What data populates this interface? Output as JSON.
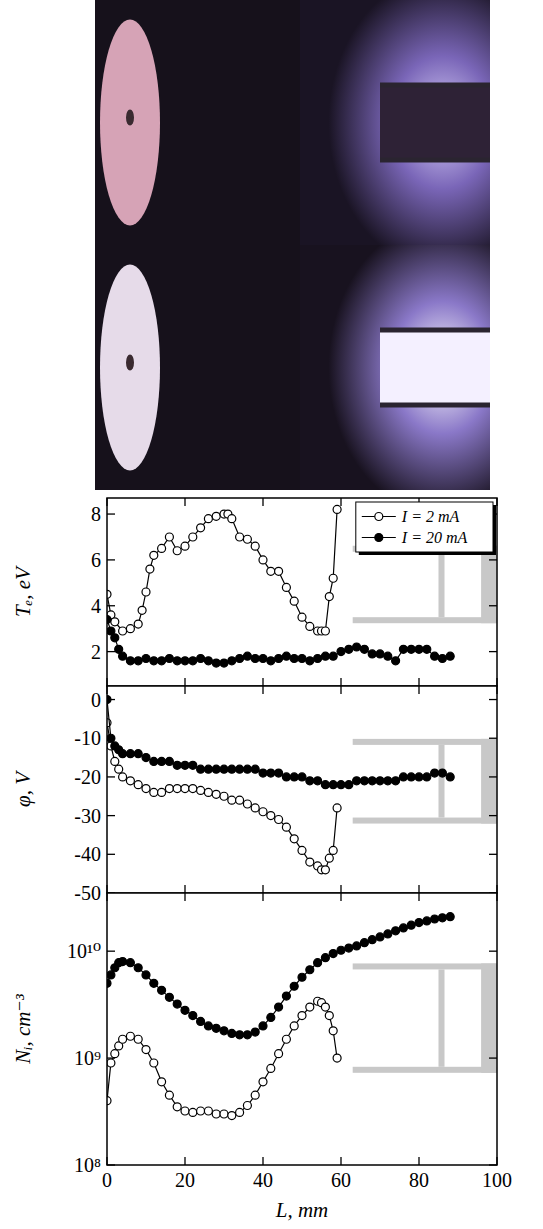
{
  "chart_data": [
    {
      "type": "line",
      "ylabel": "Tₑ, eV",
      "xlim": [
        0,
        100
      ],
      "xticks": [
        0,
        20,
        40,
        60,
        80,
        100
      ],
      "ylim": [
        0.5,
        8.7
      ],
      "yticks": [
        2,
        4,
        6,
        8
      ],
      "tick_labels": "y",
      "legend": "upper right",
      "series": [
        {
          "name": "I = 2 mA",
          "color": "#000000",
          "marker": "circle-open",
          "line_style": "solid",
          "x": [
            0,
            1,
            2,
            4,
            6,
            8,
            9,
            10,
            11,
            12,
            14,
            16,
            18,
            20,
            22,
            24,
            26,
            28,
            30,
            31,
            32,
            34,
            36,
            38,
            40,
            42,
            44,
            46,
            48,
            50,
            52,
            54,
            55,
            56,
            57,
            58,
            59
          ],
          "values": [
            4.5,
            3.6,
            3.3,
            2.9,
            3.0,
            3.2,
            3.8,
            4.6,
            5.6,
            6.2,
            6.5,
            7.0,
            6.4,
            6.6,
            7.0,
            7.4,
            7.8,
            7.9,
            8.0,
            8.0,
            7.8,
            7.0,
            6.9,
            6.6,
            6.0,
            5.5,
            5.5,
            4.8,
            4.2,
            3.5,
            3.1,
            2.9,
            2.9,
            2.9,
            4.4,
            5.2,
            8.2
          ]
        },
        {
          "name": "I = 20 mA",
          "color": "#000000",
          "marker": "circle",
          "line_style": "solid",
          "x": [
            0,
            1,
            2,
            3,
            4,
            6,
            8,
            10,
            12,
            14,
            16,
            18,
            20,
            22,
            24,
            26,
            28,
            30,
            32,
            34,
            36,
            38,
            40,
            42,
            44,
            46,
            48,
            50,
            52,
            54,
            56,
            58,
            60,
            62,
            64,
            66,
            68,
            70,
            72,
            74,
            76,
            78,
            80,
            82,
            84,
            86,
            88
          ],
          "values": [
            3.4,
            2.9,
            2.6,
            2.1,
            1.8,
            1.6,
            1.6,
            1.7,
            1.6,
            1.6,
            1.7,
            1.6,
            1.6,
            1.6,
            1.7,
            1.6,
            1.5,
            1.5,
            1.6,
            1.7,
            1.8,
            1.7,
            1.7,
            1.6,
            1.7,
            1.8,
            1.7,
            1.7,
            1.6,
            1.7,
            1.8,
            1.8,
            2.0,
            2.1,
            2.2,
            2.1,
            1.9,
            1.9,
            1.8,
            1.6,
            2.1,
            2.1,
            2.1,
            2.1,
            1.8,
            1.7,
            1.8
          ]
        }
      ]
    },
    {
      "type": "line",
      "ylabel": "φ, V",
      "xlim": [
        0,
        100
      ],
      "xticks": [
        0,
        20,
        40,
        60,
        80,
        100
      ],
      "ylim": [
        -50,
        3.5
      ],
      "yticks": [
        -50,
        -40,
        -30,
        -20,
        -10,
        0
      ],
      "tick_labels": "y",
      "series": [
        {
          "color": "#000000",
          "marker": "circle-open",
          "line_style": "solid",
          "x": [
            0,
            1,
            2,
            3,
            4,
            6,
            8,
            10,
            12,
            14,
            16,
            18,
            20,
            22,
            24,
            26,
            28,
            30,
            32,
            34,
            36,
            38,
            40,
            42,
            44,
            46,
            48,
            50,
            52,
            54,
            55,
            56,
            57,
            58,
            59
          ],
          "values": [
            -6,
            -12,
            -16,
            -18,
            -20,
            -21,
            -22,
            -23,
            -24,
            -24,
            -23,
            -23,
            -23,
            -23,
            -23.5,
            -24,
            -24.5,
            -25,
            -26,
            -26,
            -27,
            -28,
            -29,
            -30,
            -31,
            -33,
            -36,
            -39,
            -42,
            -43,
            -44,
            -44,
            -41,
            -39,
            -28
          ]
        },
        {
          "color": "#000000",
          "marker": "circle",
          "line_style": "solid",
          "x": [
            0,
            1,
            2,
            3,
            4,
            6,
            8,
            10,
            12,
            14,
            16,
            18,
            20,
            22,
            24,
            26,
            28,
            30,
            32,
            34,
            36,
            38,
            40,
            42,
            44,
            46,
            48,
            50,
            52,
            54,
            56,
            58,
            60,
            62,
            64,
            66,
            68,
            70,
            72,
            74,
            76,
            78,
            80,
            82,
            84,
            86,
            88
          ],
          "values": [
            0,
            -10,
            -12,
            -13,
            -14,
            -14,
            -14,
            -15,
            -16,
            -16,
            -16,
            -17,
            -17,
            -17,
            -18,
            -18,
            -18,
            -18,
            -18,
            -18,
            -18,
            -18,
            -19,
            -19,
            -19,
            -20,
            -20,
            -20,
            -21,
            -21,
            -22,
            -22,
            -22,
            -22,
            -21,
            -21,
            -21,
            -21,
            -21,
            -21,
            -20,
            -20,
            -20,
            -20,
            -19,
            -19,
            -20
          ]
        }
      ]
    },
    {
      "type": "line",
      "ylabel": "Nᵢ, cm⁻³",
      "xlabel": "L, mm",
      "xlim": [
        0,
        100
      ],
      "xticks": [
        0,
        20,
        40,
        60,
        80,
        100
      ],
      "ylim": [
        100000000,
        35000000000
      ],
      "log": "y",
      "yticks": [
        {
          "value": 100000000,
          "label": "10⁸"
        },
        {
          "value": 1000000000,
          "label": "10⁹"
        },
        {
          "value": 10000000000,
          "label": "10¹⁰"
        }
      ],
      "series": [
        {
          "color": "#000000",
          "marker": "circle-open",
          "line_style": "solid",
          "x": [
            0,
            1,
            2,
            3,
            4,
            6,
            8,
            10,
            12,
            14,
            16,
            18,
            20,
            22,
            24,
            26,
            28,
            30,
            32,
            34,
            36,
            38,
            40,
            42,
            44,
            46,
            48,
            50,
            52,
            54,
            55,
            56,
            57,
            58,
            59
          ],
          "values": [
            400000000,
            900000000,
            1100000000,
            1300000000,
            1500000000,
            1600000000,
            1500000000,
            1200000000,
            900000000,
            600000000,
            450000000,
            350000000,
            320000000,
            310000000,
            320000000,
            320000000,
            300000000,
            300000000,
            290000000,
            310000000,
            360000000,
            450000000,
            600000000,
            800000000,
            1100000000,
            1500000000,
            2000000000,
            2500000000,
            3000000000,
            3400000000,
            3300000000,
            3000000000,
            2500000000,
            1800000000,
            1000000000
          ]
        },
        {
          "color": "#000000",
          "marker": "circle",
          "line_style": "solid",
          "x": [
            0,
            1,
            2,
            3,
            4,
            6,
            8,
            10,
            12,
            14,
            16,
            18,
            20,
            22,
            24,
            26,
            28,
            30,
            32,
            34,
            36,
            38,
            40,
            42,
            44,
            46,
            48,
            50,
            52,
            54,
            56,
            58,
            60,
            62,
            64,
            66,
            68,
            70,
            72,
            74,
            76,
            78,
            80,
            82,
            84,
            86,
            88
          ],
          "values": [
            5000000000,
            6000000000,
            7000000000,
            7800000000,
            8000000000,
            7800000000,
            7000000000,
            6000000000,
            5000000000,
            4300000000,
            3700000000,
            3200000000,
            2800000000,
            2500000000,
            2200000000,
            2000000000,
            1900000000,
            1800000000,
            1700000000,
            1650000000,
            1650000000,
            1750000000,
            2000000000,
            2400000000,
            3000000000,
            3800000000,
            4700000000,
            5700000000,
            6700000000,
            7800000000,
            8700000000,
            9500000000,
            10200000000,
            10700000000,
            11200000000,
            12000000000,
            12800000000,
            13600000000,
            14500000000,
            15500000000,
            16500000000,
            17500000000,
            18500000000,
            19200000000,
            20000000000,
            20500000000,
            21000000000
          ]
        }
      ]
    }
  ]
}
